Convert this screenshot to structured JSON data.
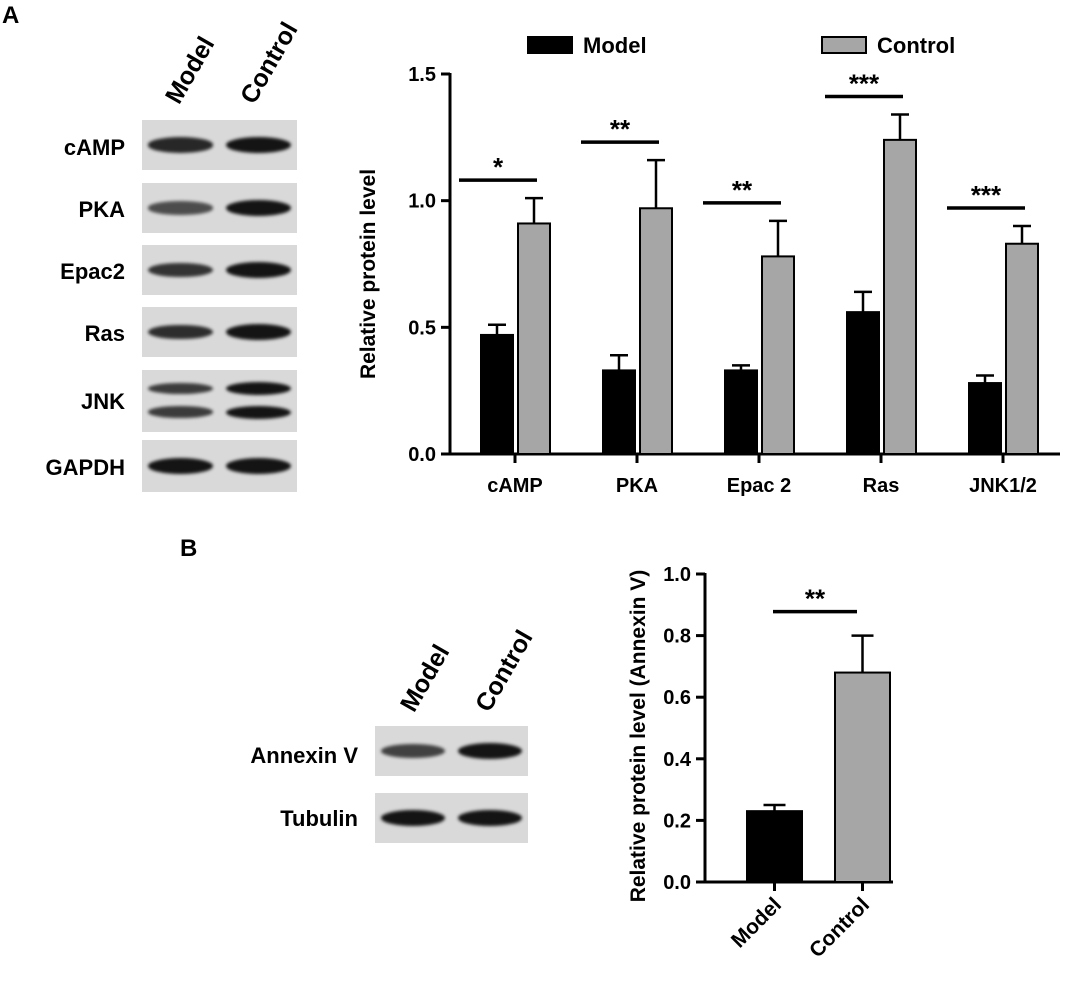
{
  "panels": {
    "a": {
      "letter": "A",
      "lanes": [
        "Model",
        "Control"
      ],
      "blots": [
        {
          "label": "cAMP",
          "bands": [
            {
              "lane": 0,
              "intensity": 0.85
            },
            {
              "lane": 1,
              "intensity": 1.0
            }
          ]
        },
        {
          "label": "PKA",
          "bands": [
            {
              "lane": 0,
              "intensity": 0.55
            },
            {
              "lane": 1,
              "intensity": 1.0
            }
          ]
        },
        {
          "label": "Epac2",
          "bands": [
            {
              "lane": 0,
              "intensity": 0.75
            },
            {
              "lane": 1,
              "intensity": 1.0
            }
          ]
        },
        {
          "label": "Ras",
          "bands": [
            {
              "lane": 0,
              "intensity": 0.8
            },
            {
              "lane": 1,
              "intensity": 1.0
            }
          ]
        },
        {
          "label": "JNK",
          "bands": [
            {
              "lane": 0,
              "intensity": 0.7
            },
            {
              "lane": 1,
              "intensity": 1.0
            }
          ]
        },
        {
          "label": "GAPDH",
          "bands": [
            {
              "lane": 0,
              "intensity": 1.0
            },
            {
              "lane": 1,
              "intensity": 1.0
            }
          ]
        }
      ]
    },
    "b": {
      "letter": "B",
      "lanes": [
        "Model",
        "Control"
      ],
      "blots": [
        {
          "label": "Annexin  V",
          "bands": [
            {
              "lane": 0,
              "intensity": 0.65
            },
            {
              "lane": 1,
              "intensity": 1.0
            }
          ]
        },
        {
          "label": "Tubulin",
          "bands": [
            {
              "lane": 0,
              "intensity": 1.0
            },
            {
              "lane": 1,
              "intensity": 1.0
            }
          ]
        }
      ]
    }
  },
  "chart_data": [
    {
      "type": "bar",
      "panel": "A",
      "categories": [
        "cAMP",
        "PKA",
        "Epac 2",
        "Ras",
        "JNK1/2"
      ],
      "series": [
        {
          "name": "Model",
          "color": "#000000",
          "values": [
            0.47,
            0.33,
            0.33,
            0.56,
            0.28
          ],
          "errors": [
            0.04,
            0.06,
            0.02,
            0.08,
            0.03
          ]
        },
        {
          "name": "Control",
          "color": "#a6a6a6",
          "values": [
            0.91,
            0.97,
            0.78,
            1.24,
            0.83
          ],
          "errors": [
            0.1,
            0.19,
            0.14,
            0.1,
            0.07
          ]
        }
      ],
      "significance": [
        "*",
        "**",
        "**",
        "***",
        "***"
      ],
      "title": "",
      "xlabel": "",
      "ylabel": "Relative protein level",
      "ylim": [
        0,
        1.5
      ],
      "yticks": [
        "0.0",
        "0.5",
        "1.0",
        "1.5"
      ],
      "legend_position": "top"
    },
    {
      "type": "bar",
      "panel": "B",
      "categories": [
        "Model",
        "Control"
      ],
      "values": [
        0.23,
        0.68
      ],
      "errors": [
        0.02,
        0.12
      ],
      "colors": [
        "#000000",
        "#a6a6a6"
      ],
      "significance": [
        "**"
      ],
      "title": "",
      "xlabel": "",
      "ylabel": "Relative protein level (Annexin V)",
      "ylim": [
        0,
        1.0
      ],
      "yticks": [
        "0.0",
        "0.2",
        "0.4",
        "0.6",
        "0.8",
        "1.0"
      ]
    }
  ]
}
